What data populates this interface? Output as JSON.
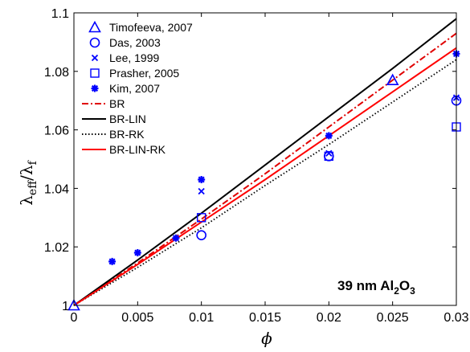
{
  "chart_data": {
    "type": "scatter",
    "xlabel": "ϕ",
    "ylabel": {
      "main": "λ",
      "sub1": "eff",
      "slash": "/λ",
      "sub2": "f"
    },
    "xlim": [
      0,
      0.03
    ],
    "ylim": [
      1,
      1.1
    ],
    "x_ticks": [
      "0",
      "0.005",
      "0.01",
      "0.015",
      "0.02",
      "0.025",
      "0.03"
    ],
    "x_tick_values": [
      0,
      0.005,
      0.01,
      0.015,
      0.02,
      0.025,
      0.03
    ],
    "y_ticks": [
      "1",
      "1.02",
      "1.04",
      "1.06",
      "1.08",
      "1.1"
    ],
    "y_tick_values": [
      1,
      1.02,
      1.04,
      1.06,
      1.08,
      1.1
    ],
    "grid": false,
    "legend_position": "top-left",
    "annotation": {
      "text": "39 nm Al",
      "sub": "2",
      "tail": "O",
      "sub2": "3"
    },
    "scatter_series": [
      {
        "name": "Timofeeva, 2007",
        "marker": "triangle",
        "color": "#0000ff",
        "points": [
          [
            0,
            1.0
          ],
          [
            0.025,
            1.077
          ]
        ]
      },
      {
        "name": "Das, 2003",
        "marker": "circle",
        "color": "#0000ff",
        "points": [
          [
            0.01,
            1.024
          ],
          [
            0.02,
            1.051
          ],
          [
            0.03,
            1.07
          ]
        ]
      },
      {
        "name": "Lee, 1999",
        "marker": "x",
        "color": "#0000ff",
        "points": [
          [
            0.01,
            1.039
          ],
          [
            0.02,
            1.052
          ],
          [
            0.03,
            1.071
          ]
        ]
      },
      {
        "name": "Prasher, 2005",
        "marker": "square",
        "color": "#0000ff",
        "points": [
          [
            0.01,
            1.03
          ],
          [
            0.02,
            1.051
          ],
          [
            0.03,
            1.061
          ]
        ]
      },
      {
        "name": "Kim, 2007",
        "marker": "asterisk",
        "color": "#0000ff",
        "points": [
          [
            0.003,
            1.015
          ],
          [
            0.005,
            1.018
          ],
          [
            0.008,
            1.023
          ],
          [
            0.01,
            1.043
          ],
          [
            0.02,
            1.058
          ],
          [
            0.03,
            1.086
          ]
        ]
      }
    ],
    "line_series": [
      {
        "name": "BR",
        "style": "dashdot",
        "color": "#e00000",
        "points": [
          [
            0,
            1.0
          ],
          [
            0.005,
            1.0145
          ],
          [
            0.01,
            1.0295
          ],
          [
            0.015,
            1.045
          ],
          [
            0.02,
            1.061
          ],
          [
            0.025,
            1.077
          ],
          [
            0.03,
            1.093
          ]
        ]
      },
      {
        "name": "BR-LIN",
        "style": "solid",
        "color": "#000000",
        "points": [
          [
            0,
            1.0
          ],
          [
            0.005,
            1.0155
          ],
          [
            0.01,
            1.0315
          ],
          [
            0.015,
            1.048
          ],
          [
            0.02,
            1.0645
          ],
          [
            0.025,
            1.081
          ],
          [
            0.03,
            1.098
          ]
        ]
      },
      {
        "name": "BR-RK",
        "style": "dotted",
        "color": "#000000",
        "points": [
          [
            0,
            1.0
          ],
          [
            0.005,
            1.013
          ],
          [
            0.01,
            1.0265
          ],
          [
            0.015,
            1.041
          ],
          [
            0.02,
            1.055
          ],
          [
            0.025,
            1.0695
          ],
          [
            0.03,
            1.084
          ]
        ]
      },
      {
        "name": "BR-LIN-RK",
        "style": "solid",
        "color": "#ff0000",
        "points": [
          [
            0,
            1.0
          ],
          [
            0.005,
            1.014
          ],
          [
            0.01,
            1.0285
          ],
          [
            0.015,
            1.043
          ],
          [
            0.02,
            1.058
          ],
          [
            0.025,
            1.073
          ],
          [
            0.03,
            1.088
          ]
        ]
      }
    ]
  }
}
